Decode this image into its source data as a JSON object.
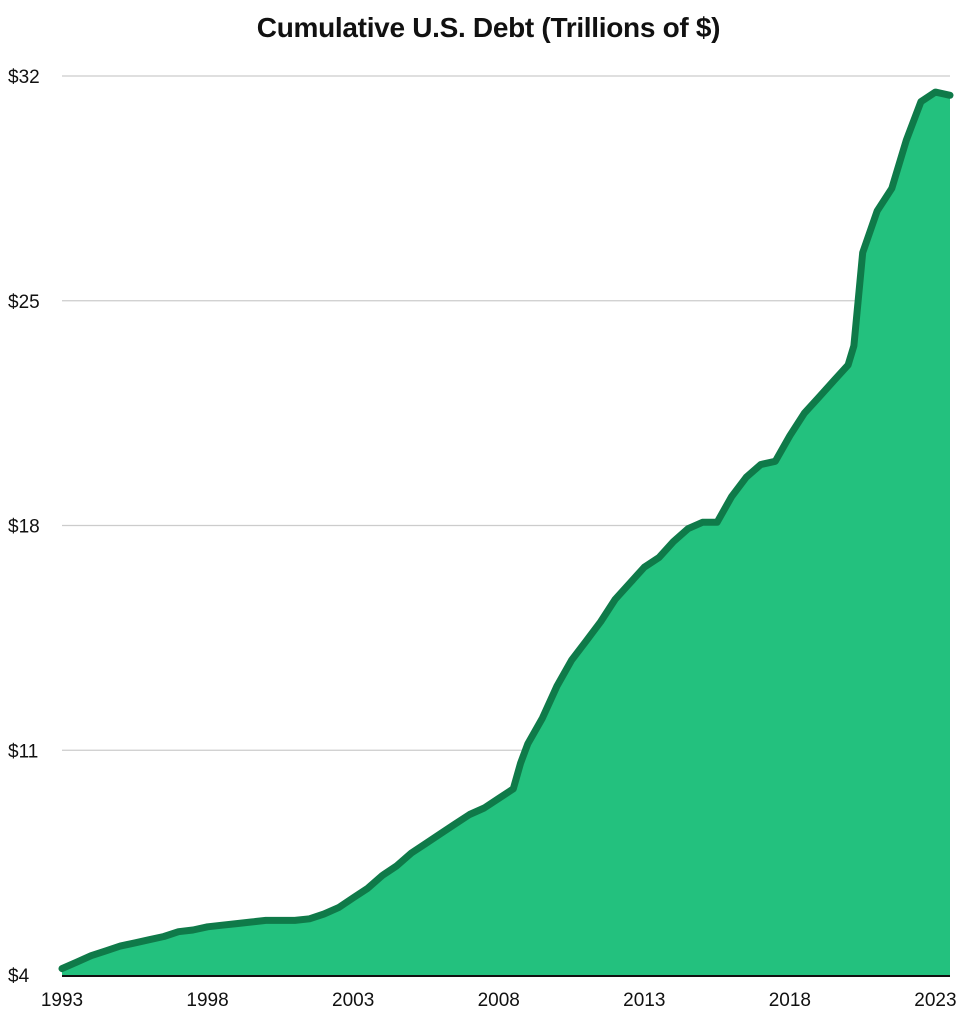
{
  "chart_data": {
    "type": "area",
    "title": "Cumulative U.S. Debt (Trillions of $)",
    "xlabel": "",
    "ylabel": "",
    "xlim": [
      1993,
      2023.5
    ],
    "ylim": [
      4,
      32
    ],
    "grid": "horizontal",
    "legend": "none",
    "x_ticks": [
      1993,
      1998,
      2003,
      2008,
      2013,
      2018,
      2023
    ],
    "y_ticks": [
      {
        "value": 4,
        "label": "$4"
      },
      {
        "value": 11,
        "label": "$11"
      },
      {
        "value": 18,
        "label": "$18"
      },
      {
        "value": 25,
        "label": "$25"
      },
      {
        "value": 32,
        "label": "$32"
      }
    ],
    "x": [
      1993.0,
      1993.5,
      1994.0,
      1994.5,
      1995.0,
      1995.5,
      1996.0,
      1996.5,
      1997.0,
      1997.5,
      1998.0,
      1998.5,
      1999.0,
      1999.5,
      2000.0,
      2000.5,
      2001.0,
      2001.5,
      2002.0,
      2002.5,
      2003.0,
      2003.5,
      2004.0,
      2004.5,
      2005.0,
      2005.5,
      2006.0,
      2006.5,
      2007.0,
      2007.5,
      2008.0,
      2008.5,
      2008.75,
      2009.0,
      2009.5,
      2010.0,
      2010.5,
      2011.0,
      2011.5,
      2012.0,
      2012.5,
      2013.0,
      2013.5,
      2014.0,
      2014.5,
      2015.0,
      2015.5,
      2016.0,
      2016.5,
      2017.0,
      2017.5,
      2018.0,
      2018.5,
      2019.0,
      2019.5,
      2020.0,
      2020.2,
      2020.5,
      2021.0,
      2021.5,
      2022.0,
      2022.5,
      2023.0,
      2023.5
    ],
    "series": [
      {
        "values": [
          4.2,
          4.4,
          4.6,
          4.75,
          4.9,
          5.0,
          5.1,
          5.2,
          5.35,
          5.4,
          5.5,
          5.55,
          5.6,
          5.65,
          5.7,
          5.7,
          5.7,
          5.75,
          5.9,
          6.1,
          6.4,
          6.7,
          7.1,
          7.4,
          7.8,
          8.1,
          8.4,
          8.7,
          9.0,
          9.2,
          9.5,
          9.8,
          10.6,
          11.2,
          12.0,
          13.0,
          13.8,
          14.4,
          15.0,
          15.7,
          16.2,
          16.7,
          17.0,
          17.5,
          17.9,
          18.1,
          18.1,
          18.9,
          19.5,
          19.9,
          20.0,
          20.8,
          21.5,
          22.0,
          22.5,
          23.0,
          23.6,
          26.5,
          27.8,
          28.5,
          30.0,
          31.2,
          31.5,
          31.4
        ]
      }
    ],
    "colors": {
      "area_fill": "#23c17e",
      "line": "#0f7a49",
      "grid": "#cccccc",
      "axis": "#111111"
    }
  }
}
